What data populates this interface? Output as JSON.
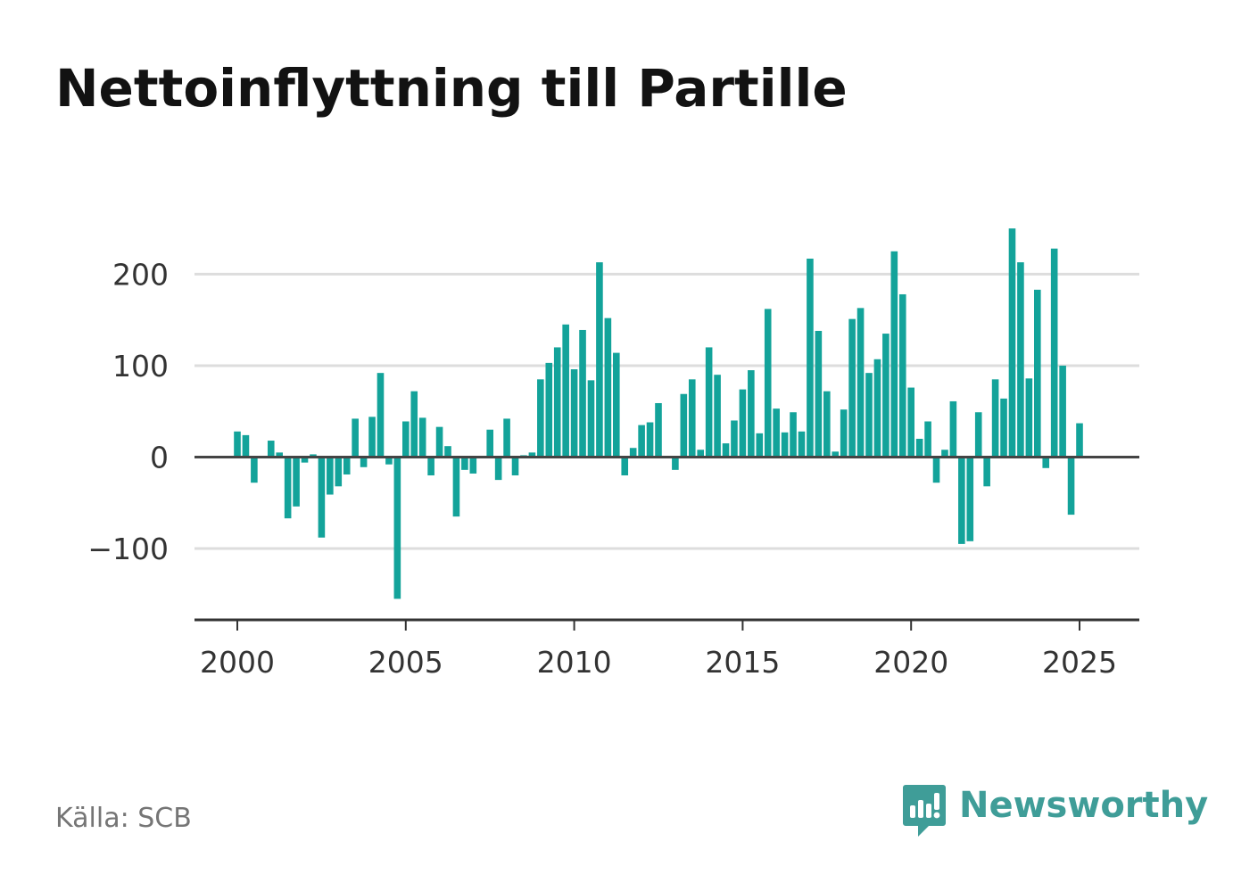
{
  "title": "Nettoinflyttning till Partille",
  "source": "Källa: SCB",
  "brand": "Newsworthy",
  "colors": {
    "bar": "#13a39a",
    "grid": "#dddddd",
    "zero_line": "#444444",
    "axis": "#333333",
    "brand": "#3f9d98"
  },
  "chart_data": {
    "type": "bar",
    "x_ticks": [
      "2000",
      "2005",
      "2010",
      "2015",
      "2020",
      "2025"
    ],
    "y_ticks": [
      "200",
      "100",
      "0",
      "−100"
    ],
    "ylim": [
      -178,
      256
    ],
    "grid": true,
    "x": [
      "2000 Q1",
      "2000 Q2",
      "2000 Q3",
      "2000 Q4",
      "2001 Q1",
      "2001 Q2",
      "2001 Q3",
      "2001 Q4",
      "2002 Q1",
      "2002 Q2",
      "2002 Q3",
      "2002 Q4",
      "2003 Q1",
      "2003 Q2",
      "2003 Q3",
      "2003 Q4",
      "2004 Q1",
      "2004 Q2",
      "2004 Q3",
      "2004 Q4",
      "2005 Q1",
      "2005 Q2",
      "2005 Q3",
      "2005 Q4",
      "2006 Q1",
      "2006 Q2",
      "2006 Q3",
      "2006 Q4",
      "2007 Q1",
      "2007 Q2",
      "2007 Q3",
      "2007 Q4",
      "2008 Q1",
      "2008 Q2",
      "2008 Q3",
      "2008 Q4",
      "2009 Q1",
      "2009 Q2",
      "2009 Q3",
      "2009 Q4",
      "2010 Q1",
      "2010 Q2",
      "2010 Q3",
      "2010 Q4",
      "2011 Q1",
      "2011 Q2",
      "2011 Q3",
      "2011 Q4",
      "2012 Q1",
      "2012 Q2",
      "2012 Q3",
      "2012 Q4",
      "2013 Q1",
      "2013 Q2",
      "2013 Q3",
      "2013 Q4",
      "2014 Q1",
      "2014 Q2",
      "2014 Q3",
      "2014 Q4",
      "2015 Q1",
      "2015 Q2",
      "2015 Q3",
      "2015 Q4",
      "2016 Q1",
      "2016 Q2",
      "2016 Q3",
      "2016 Q4",
      "2017 Q1",
      "2017 Q2",
      "2017 Q3",
      "2017 Q4",
      "2018 Q1",
      "2018 Q2",
      "2018 Q3",
      "2018 Q4",
      "2019 Q1",
      "2019 Q2",
      "2019 Q3",
      "2019 Q4",
      "2020 Q1",
      "2020 Q2",
      "2020 Q3",
      "2020 Q4",
      "2021 Q1",
      "2021 Q2",
      "2021 Q3",
      "2021 Q4",
      "2022 Q1",
      "2022 Q2",
      "2022 Q3",
      "2022 Q4",
      "2023 Q1",
      "2023 Q2",
      "2023 Q3",
      "2023 Q4",
      "2024 Q1",
      "2024 Q2",
      "2024 Q3",
      "2024 Q4",
      "2025 Q1",
      "2025 Q2"
    ],
    "values": [
      28,
      24,
      -28,
      0,
      18,
      5,
      -67,
      -54,
      -6,
      3,
      -88,
      -41,
      -32,
      -19,
      42,
      -11,
      44,
      92,
      -8,
      -155,
      39,
      72,
      43,
      -20,
      33,
      12,
      -65,
      -14,
      -18,
      0,
      30,
      -25,
      42,
      -20,
      2,
      5,
      85,
      103,
      120,
      145,
      96,
      139,
      84,
      213,
      152,
      114,
      -20,
      10,
      35,
      38,
      59,
      0,
      -14,
      69,
      85,
      8,
      120,
      90,
      15,
      40,
      74,
      95,
      26,
      162,
      53,
      27,
      49,
      28,
      217,
      138,
      72,
      6,
      52,
      151,
      163,
      92,
      107,
      135,
      225,
      178,
      76,
      20,
      39,
      -28,
      8,
      61,
      -95,
      -92,
      49,
      -32,
      85,
      64,
      250,
      213,
      86,
      183,
      -12,
      228,
      100,
      -63,
      37,
      0
    ]
  }
}
